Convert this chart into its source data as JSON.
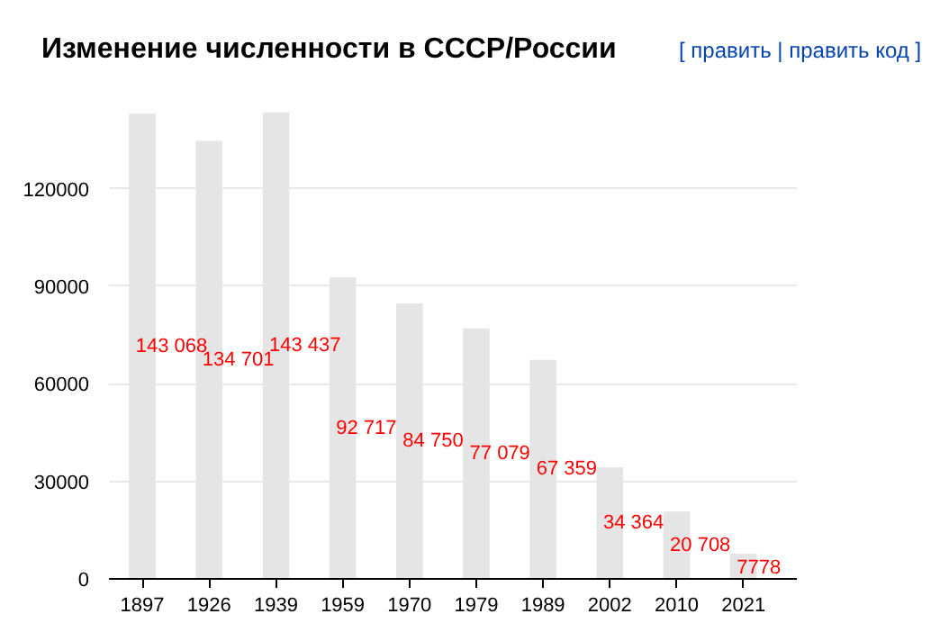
{
  "chart_data": {
    "type": "bar",
    "title": "Изменение численности в СССР/России",
    "annotations": [
      "[ править | править код ]"
    ],
    "categories": [
      "1897",
      "1926",
      "1939",
      "1959",
      "1970",
      "1979",
      "1989",
      "2002",
      "2010",
      "2021"
    ],
    "values": [
      143068,
      134701,
      143437,
      92717,
      84750,
      77079,
      67359,
      34364,
      20708,
      7778
    ],
    "value_labels": [
      "143 068",
      "134 701",
      "143 437",
      "92 717",
      "84 750",
      "77 079",
      "67 359",
      "34 364",
      "20 708",
      "7778"
    ],
    "color": "#e5e5e5",
    "ylim": [
      0,
      143437
    ],
    "yticks": [
      0,
      30000,
      60000,
      90000,
      120000
    ],
    "grid": "y"
  }
}
